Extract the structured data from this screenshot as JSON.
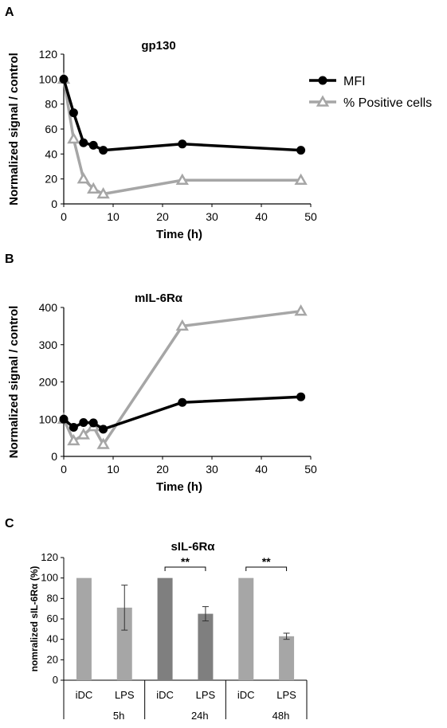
{
  "panels": {
    "a": {
      "letter": "A"
    },
    "b": {
      "letter": "B"
    },
    "c": {
      "letter": "C"
    }
  },
  "colors": {
    "mfi": "#000000",
    "positive": "#a6a6a6",
    "bar_light": "#a6a6a6",
    "bar_dark": "#7f7f7f",
    "axis": "#000000"
  },
  "chart_data": [
    {
      "type": "line",
      "title": "gp130",
      "xlabel": "Time (h)",
      "ylabel": "Normalized signal / control",
      "xlim": [
        0,
        50
      ],
      "ylim": [
        0,
        120
      ],
      "xticks": [
        0,
        10,
        20,
        30,
        40,
        50
      ],
      "yticks": [
        0,
        20,
        40,
        60,
        80,
        100,
        120
      ],
      "legend": "top-right",
      "series": [
        {
          "name": "MFI",
          "marker": "circle",
          "color": "#000000",
          "x": [
            0,
            2,
            4,
            6,
            8,
            24,
            48
          ],
          "y": [
            100,
            73,
            49,
            47,
            43,
            48,
            43
          ]
        },
        {
          "name": "% Positive cells",
          "marker": "open-triangle",
          "color": "#a6a6a6",
          "x": [
            0,
            2,
            4,
            6,
            8,
            24,
            48
          ],
          "y": [
            100,
            52,
            20,
            12,
            8,
            19,
            19
          ]
        }
      ]
    },
    {
      "type": "line",
      "title": "mIL-6Rα",
      "xlabel": "Time (h)",
      "ylabel": "Normalized signal / control",
      "xlim": [
        0,
        50
      ],
      "ylim": [
        0,
        400
      ],
      "xticks": [
        0,
        10,
        20,
        30,
        40,
        50
      ],
      "yticks": [
        0,
        100,
        200,
        300,
        400
      ],
      "series": [
        {
          "name": "MFI",
          "marker": "circle",
          "color": "#000000",
          "x": [
            0,
            2,
            4,
            6,
            8,
            24,
            48
          ],
          "y": [
            100,
            78,
            91,
            90,
            73,
            145,
            160
          ]
        },
        {
          "name": "% Positive cells",
          "marker": "open-triangle",
          "color": "#a6a6a6",
          "x": [
            0,
            2,
            4,
            6,
            8,
            24,
            48
          ],
          "y": [
            100,
            42,
            58,
            80,
            32,
            350,
            390
          ]
        }
      ]
    },
    {
      "type": "bar",
      "title": "sIL-6Rα",
      "ylabel": "nomralized sIL-6Rα (%)",
      "ylim": [
        0,
        120
      ],
      "yticks": [
        0,
        20,
        40,
        60,
        80,
        100,
        120
      ],
      "groups": [
        {
          "label": "5h",
          "categories": [
            "iDC",
            "LPS"
          ],
          "values": [
            100,
            71
          ],
          "errors": [
            0,
            22
          ],
          "shade": "light",
          "significance": ""
        },
        {
          "label": "24h",
          "categories": [
            "iDC",
            "LPS"
          ],
          "values": [
            100,
            65
          ],
          "errors": [
            0,
            7
          ],
          "shade": "dark",
          "significance": "**"
        },
        {
          "label": "48h",
          "categories": [
            "iDC",
            "LPS"
          ],
          "values": [
            100,
            43
          ],
          "errors": [
            0,
            3
          ],
          "shade": "light",
          "significance": "**"
        }
      ]
    }
  ]
}
